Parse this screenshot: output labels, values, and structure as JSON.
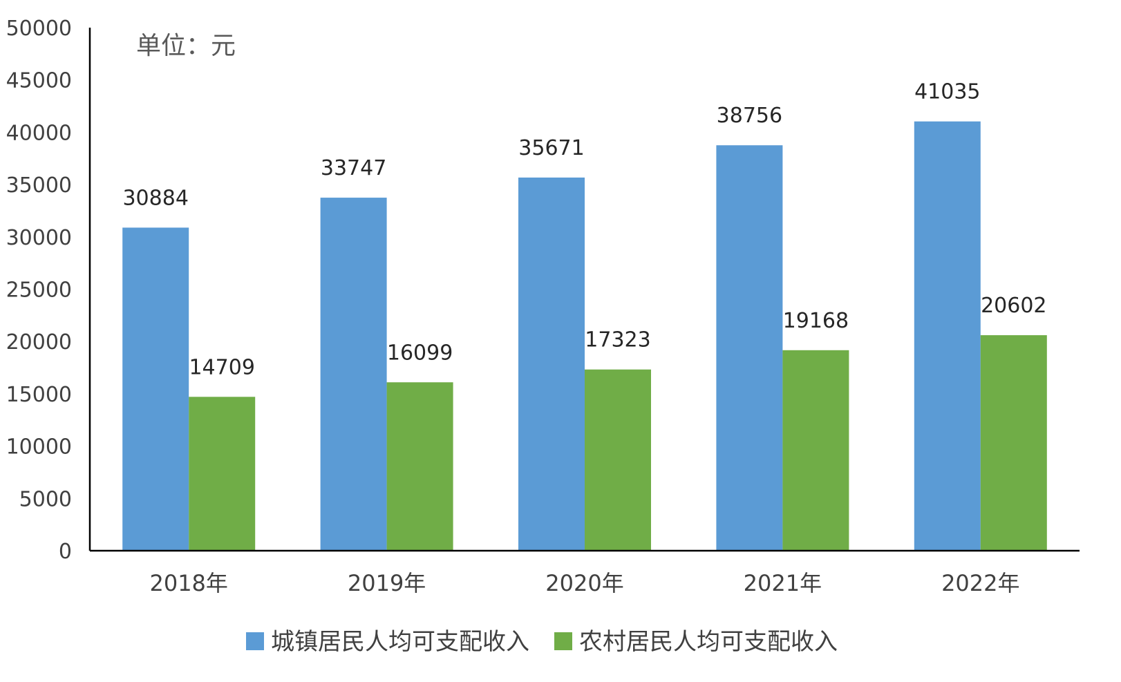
{
  "chart_data": {
    "type": "bar",
    "unit_label": "单位：元",
    "categories": [
      "2018年",
      "2019年",
      "2020年",
      "2021年",
      "2022年"
    ],
    "series": [
      {
        "name": "城镇居民人均可支配收入",
        "color": "#5B9BD5",
        "values": [
          30884,
          33747,
          35671,
          38756,
          41035
        ]
      },
      {
        "name": "农村居民人均可支配收入",
        "color": "#70AD47",
        "values": [
          14709,
          16099,
          17323,
          19168,
          20602
        ]
      }
    ],
    "ylim": [
      0,
      50000
    ],
    "yticks": [
      0,
      5000,
      10000,
      15000,
      20000,
      25000,
      30000,
      35000,
      40000,
      45000,
      50000
    ],
    "grid": false,
    "data_labels": true,
    "legend_position": "bottom"
  }
}
